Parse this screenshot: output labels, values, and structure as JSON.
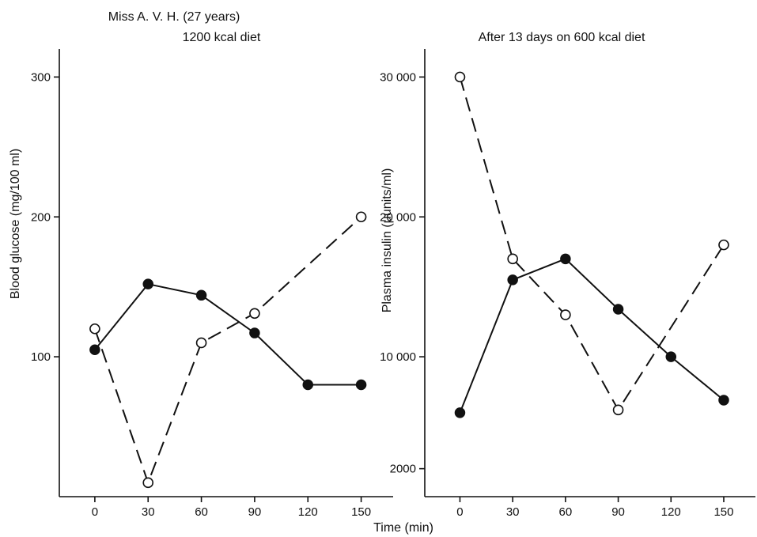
{
  "shared_xlabel": "Time (min)",
  "chart_data": [
    {
      "type": "line",
      "title": "Miss A. V. H. (27 years)",
      "subtitle": "1200 kcal diet",
      "xlabel": "",
      "ylabel": "Blood glucose (mg/100 ml)",
      "x": [
        0,
        30,
        60,
        90,
        120,
        150
      ],
      "x_tick_labels": [
        "0",
        "30",
        "60",
        "90",
        "120",
        "150"
      ],
      "xlim": [
        -20,
        168
      ],
      "y_ticks": [
        100,
        200,
        300
      ],
      "y_tick_labels": [
        "100",
        "200",
        "300"
      ],
      "ylim": [
        0,
        320
      ],
      "grid": false,
      "series": [
        {
          "style": "solid",
          "marker": "filled-circle",
          "values": [
            105,
            152,
            144,
            117,
            80,
            80
          ]
        },
        {
          "style": "dashed",
          "marker": "open-circle",
          "values": [
            120,
            10,
            110,
            131,
            null,
            200
          ]
        }
      ]
    },
    {
      "type": "line",
      "title": "After 13 days on 600 kcal diet",
      "xlabel": "",
      "ylabel": "Plasma insulin (μunits/ml)",
      "x": [
        0,
        30,
        60,
        90,
        120,
        150
      ],
      "x_tick_labels": [
        "0",
        "30",
        "60",
        "90",
        "120",
        "150"
      ],
      "xlim": [
        -20,
        168
      ],
      "y_ticks": [
        2000,
        10000,
        20000,
        30000
      ],
      "y_tick_labels": [
        "2000",
        "10 000",
        "20 000",
        "30 000"
      ],
      "ylim": [
        0,
        32000
      ],
      "grid": false,
      "series": [
        {
          "style": "solid",
          "marker": "filled-circle",
          "values": [
            6000,
            15500,
            17000,
            13400,
            10000,
            6900
          ]
        },
        {
          "style": "dashed",
          "marker": "open-circle",
          "values": [
            30000,
            17000,
            13000,
            6200,
            null,
            18000
          ]
        }
      ]
    }
  ]
}
